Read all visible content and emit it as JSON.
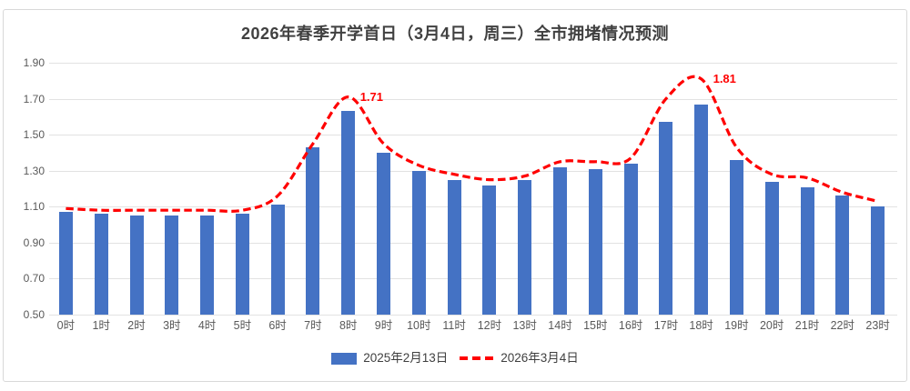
{
  "chart_data": {
    "type": "bar",
    "title": "2026年春季开学首日（3月4日，周三）全市拥堵情况预测",
    "categories": [
      "0时",
      "1时",
      "2时",
      "3时",
      "4时",
      "5时",
      "6时",
      "7时",
      "8时",
      "9时",
      "10时",
      "11时",
      "12时",
      "13时",
      "14时",
      "15时",
      "16时",
      "17时",
      "18时",
      "19时",
      "20时",
      "21时",
      "22时",
      "23时"
    ],
    "series": [
      {
        "name": "2025年2月13日",
        "type": "bar",
        "color": "#4472C4",
        "values": [
          1.07,
          1.06,
          1.05,
          1.05,
          1.05,
          1.06,
          1.11,
          1.43,
          1.63,
          1.4,
          1.3,
          1.25,
          1.22,
          1.25,
          1.32,
          1.31,
          1.34,
          1.57,
          1.67,
          1.36,
          1.24,
          1.21,
          1.16,
          1.1
        ]
      },
      {
        "name": "2026年3月4日",
        "type": "line",
        "style": "dashed",
        "smooth": true,
        "color": "#FF0000",
        "values": [
          1.09,
          1.08,
          1.08,
          1.08,
          1.08,
          1.08,
          1.16,
          1.45,
          1.71,
          1.45,
          1.33,
          1.28,
          1.25,
          1.27,
          1.35,
          1.35,
          1.37,
          1.7,
          1.81,
          1.43,
          1.28,
          1.26,
          1.18,
          1.13
        ]
      }
    ],
    "annotations": [
      {
        "text": "1.71",
        "category_index": 8,
        "value": 1.71
      },
      {
        "text": "1.81",
        "category_index": 18,
        "value": 1.81
      }
    ],
    "ylim": [
      0.5,
      1.9
    ],
    "ytick_step": 0.2,
    "ytick_labels": [
      "0.50",
      "0.70",
      "0.90",
      "1.10",
      "1.30",
      "1.50",
      "1.70",
      "1.90"
    ],
    "xlabel": "",
    "ylabel": "",
    "grid": true,
    "legend_position": "bottom"
  },
  "colors": {
    "bar": "#4472C4",
    "line": "#FF0000",
    "annotation": "#FF0000",
    "grid": "#E2E2E2",
    "axis_text": "#595959",
    "title_text": "#404040",
    "frame_border": "#D9D9D9",
    "background": "#FFFFFF"
  }
}
